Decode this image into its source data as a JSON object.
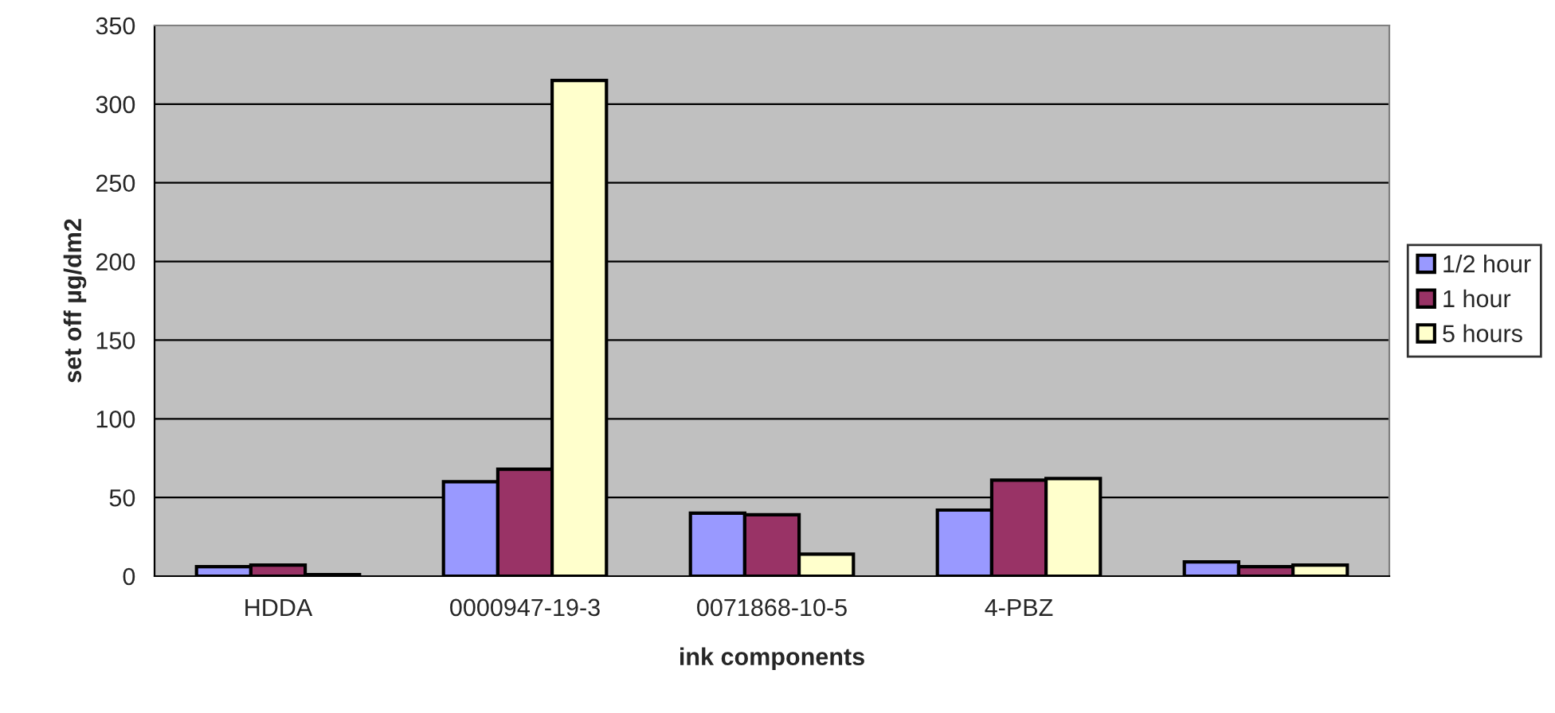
{
  "chart_data": {
    "type": "bar",
    "xlabel": "ink components",
    "ylabel": "set off µg/dm2",
    "categories": [
      "HDDA",
      "0000947-19-3",
      "0071868-10-5",
      "4-PBZ",
      null
    ],
    "series": [
      {
        "name": "1/2 hour",
        "color": "#9999ff",
        "values": [
          6,
          60,
          40,
          42,
          9
        ]
      },
      {
        "name": "1 hour",
        "color": "#993366",
        "values": [
          7,
          68,
          39,
          61,
          6
        ]
      },
      {
        "name": "5 hours",
        "color": "#ffffcc",
        "values": [
          1,
          315,
          14,
          62,
          7
        ]
      }
    ],
    "ylim": [
      0,
      350
    ],
    "yticks": [
      0,
      50,
      100,
      150,
      200,
      250,
      300,
      350
    ],
    "grid": "y",
    "legend": "right"
  }
}
